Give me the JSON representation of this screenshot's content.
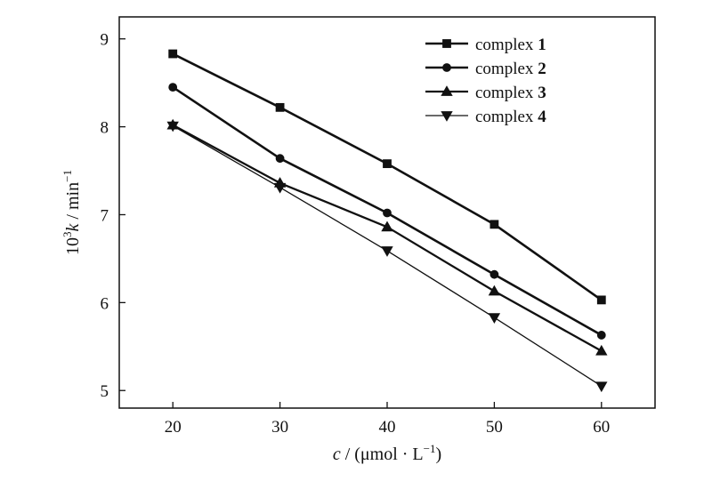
{
  "chart_data": {
    "type": "line",
    "xlabel": {
      "italic": "c",
      "rest": " / (μmol · L",
      "sup": "−1",
      "end": ")"
    },
    "ylabel": {
      "pre": "10",
      "sup1": "3",
      "italic": "k",
      "rest": " / min",
      "sup2": "−1"
    },
    "x": [
      20,
      30,
      40,
      50,
      60
    ],
    "xlim": [
      15,
      65
    ],
    "ylim": [
      4.8,
      9.25
    ],
    "xticks": [
      20,
      30,
      40,
      50,
      60
    ],
    "yticks": [
      5,
      6,
      7,
      8,
      9
    ],
    "legend_position": "top-right",
    "grid": false,
    "series": [
      {
        "name": "complex",
        "num": "1",
        "marker": "square",
        "values": [
          8.83,
          8.22,
          7.58,
          6.89,
          6.03
        ]
      },
      {
        "name": "complex",
        "num": "2",
        "marker": "circle",
        "values": [
          8.45,
          7.64,
          7.02,
          6.32,
          5.63
        ]
      },
      {
        "name": "complex",
        "num": "3",
        "marker": "triangle-up",
        "values": [
          8.02,
          7.36,
          6.86,
          6.13,
          5.45
        ]
      },
      {
        "name": "complex",
        "num": "4",
        "marker": "triangle-down",
        "values": [
          8.01,
          7.31,
          6.59,
          5.83,
          5.05
        ]
      }
    ]
  }
}
